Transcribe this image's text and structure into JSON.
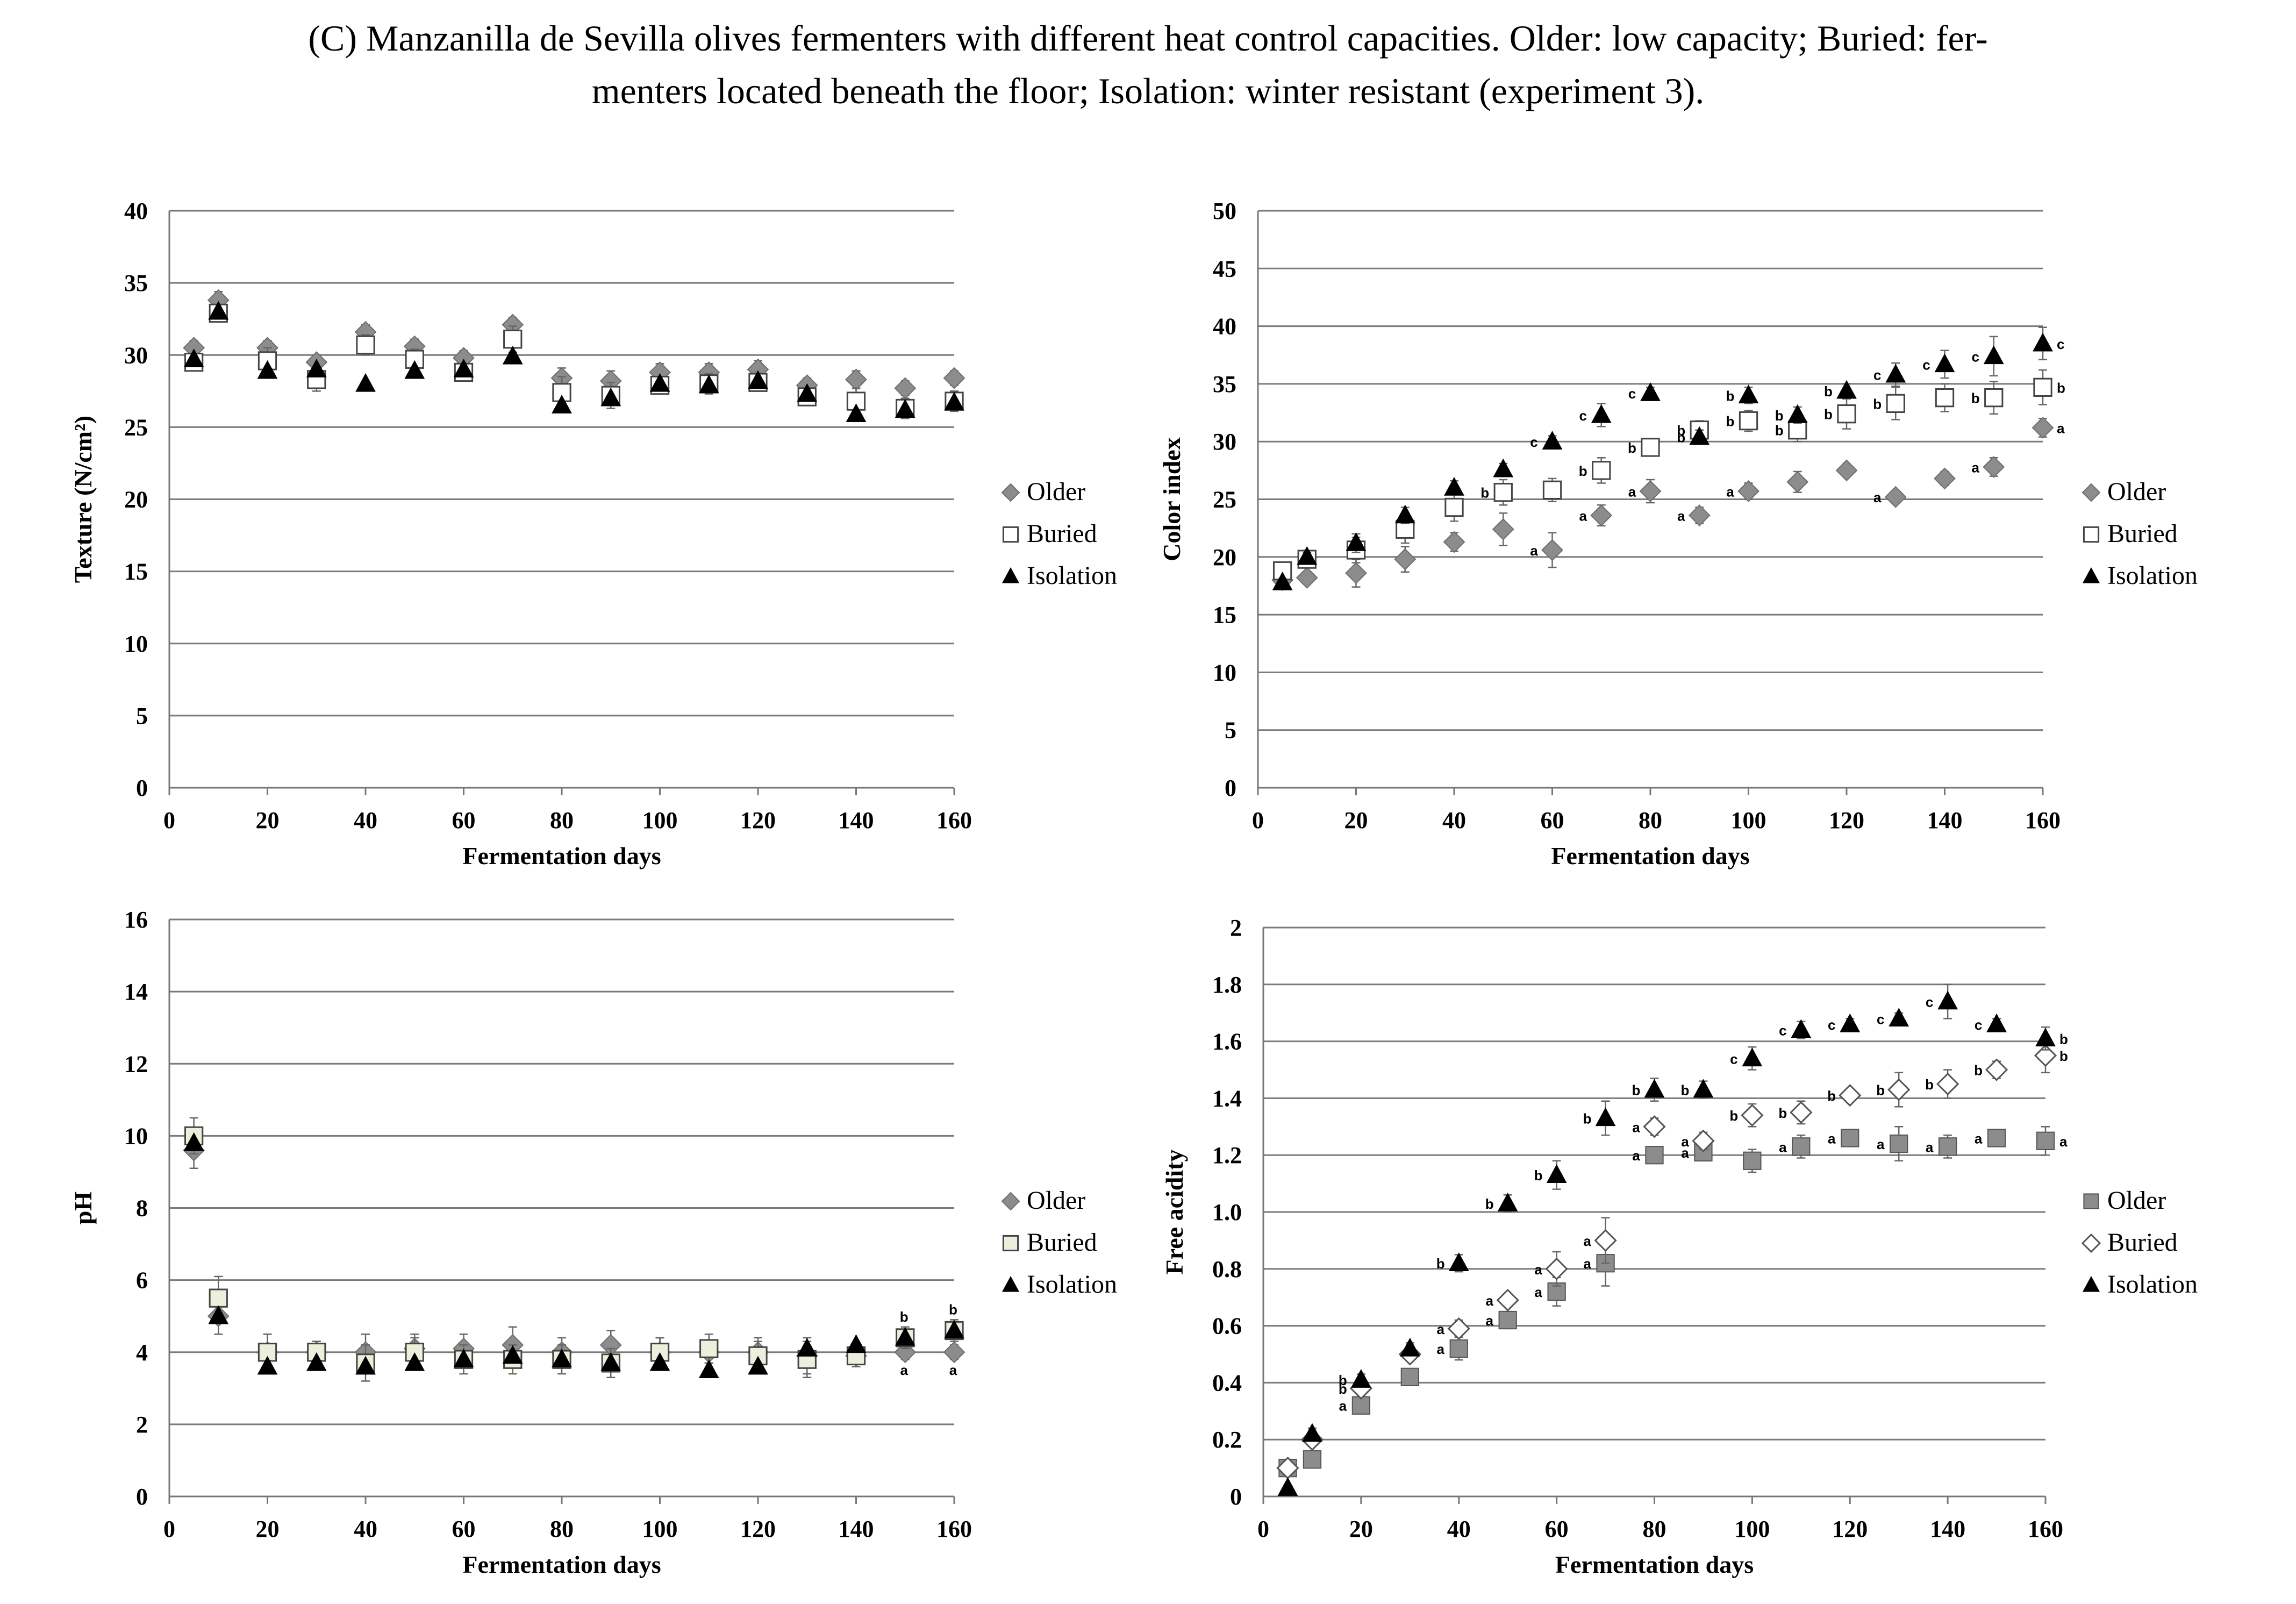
{
  "caption": {
    "line1": "(C) Manzanilla de Sevilla olives fermenters with different heat control capacities. Older: low capacity; Buried: fer-",
    "line2": "menters located beneath the floor; Isolation: winter resistant (experiment 3)."
  },
  "colors": {
    "older": "#8c8c8c",
    "buried": "#ffffff",
    "buried_ph": "#eeeedd",
    "isolation": "#000000",
    "gridline": "#7a7a7a"
  },
  "chart_data": [
    {
      "id": "texture",
      "type": "scatter",
      "title": "",
      "xlabel": "Fermentation days",
      "ylabel": "Texture (N/cm²)",
      "xlim": [
        0,
        160
      ],
      "ylim": [
        0,
        40
      ],
      "xticks": [
        0,
        20,
        40,
        60,
        80,
        100,
        120,
        140,
        160
      ],
      "yticks": [
        0,
        5,
        10,
        15,
        20,
        25,
        30,
        35,
        40
      ],
      "legend_position": "right",
      "series": [
        {
          "name": "Older",
          "marker": "diamond",
          "x": [
            5,
            10,
            20,
            30,
            40,
            50,
            60,
            70,
            80,
            90,
            100,
            110,
            120,
            130,
            140,
            150,
            160
          ],
          "y": [
            30.5,
            33.8,
            30.5,
            29.5,
            31.6,
            30.6,
            29.8,
            32.1,
            28.4,
            28.2,
            28.8,
            28.8,
            29,
            27.9,
            28.3,
            27.7,
            28.4
          ],
          "err": [
            0.5,
            0.6,
            0.5,
            0.5,
            0.5,
            0.5,
            0.5,
            0.5,
            0.7,
            0.7,
            0.6,
            0.6,
            0.6,
            0.5,
            0.6,
            0.5,
            0.5
          ]
        },
        {
          "name": "Buried",
          "marker": "square",
          "x": [
            5,
            10,
            20,
            30,
            40,
            50,
            60,
            70,
            80,
            90,
            100,
            110,
            120,
            130,
            140,
            150,
            160
          ],
          "y": [
            29.5,
            32.9,
            29.6,
            28.3,
            30.7,
            29.7,
            28.8,
            31.1,
            27.4,
            27.2,
            27.9,
            28,
            28.1,
            27.1,
            26.8,
            26.3,
            26.8
          ],
          "err": [
            0.5,
            0.6,
            0.9,
            0.8,
            0.7,
            0.7,
            0.6,
            0.9,
            1.1,
            0.9,
            0.6,
            0.7,
            0.6,
            0.6,
            0.9,
            0.7,
            0.7
          ]
        },
        {
          "name": "Isolation",
          "marker": "triangle",
          "x": [
            5,
            10,
            20,
            30,
            40,
            50,
            60,
            70,
            80,
            90,
            100,
            110,
            120,
            130,
            140,
            150,
            160
          ],
          "y": [
            29.7,
            33,
            28.9,
            29,
            28,
            28.9,
            29,
            29.9,
            26.5,
            27,
            28,
            27.9,
            28.2,
            27.3,
            25.9,
            26.2,
            26.7
          ],
          "err": [
            0,
            0,
            0,
            0,
            0,
            0,
            0,
            0,
            0,
            0,
            0,
            0,
            0,
            0,
            0,
            0,
            0
          ]
        }
      ]
    },
    {
      "id": "color",
      "type": "scatter",
      "title": "",
      "xlabel": "Fermentation days",
      "ylabel": "Color index",
      "xlim": [
        0,
        160
      ],
      "ylim": [
        0,
        50
      ],
      "xticks": [
        0,
        20,
        40,
        60,
        80,
        100,
        120,
        140,
        160
      ],
      "yticks": [
        0,
        5,
        10,
        15,
        20,
        25,
        30,
        35,
        40,
        45,
        50
      ],
      "legend_position": "right",
      "series": [
        {
          "name": "Older",
          "marker": "diamond",
          "x": [
            5,
            10,
            20,
            30,
            40,
            50,
            60,
            70,
            80,
            90,
            100,
            110,
            120,
            130,
            140,
            150,
            160
          ],
          "y": [
            18,
            18.2,
            18.6,
            19.8,
            21.3,
            22.4,
            20.6,
            23.6,
            25.7,
            23.6,
            25.7,
            26.5,
            27.5,
            25.2,
            26.8,
            27.8,
            31.2
          ],
          "err": [
            0.5,
            0.5,
            1.2,
            1.1,
            0.8,
            1.4,
            1.5,
            0.9,
            1,
            0.7,
            0.7,
            0.9,
            0.5,
            0.5,
            0.6,
            0.8,
            0.8
          ],
          "letters": [
            "",
            "",
            "",
            "",
            "",
            "",
            "a",
            "a",
            "a",
            "a",
            "a",
            "",
            "",
            "a",
            "",
            "a",
            "a"
          ]
        },
        {
          "name": "Buried",
          "marker": "square",
          "x": [
            5,
            10,
            20,
            30,
            40,
            50,
            60,
            70,
            80,
            90,
            100,
            110,
            120,
            130,
            140,
            150,
            160
          ],
          "y": [
            18.8,
            19.8,
            20.6,
            22.4,
            24.3,
            25.6,
            25.8,
            27.5,
            29.5,
            31,
            31.8,
            31,
            32.4,
            33.3,
            33.8,
            33.8,
            34.7
          ],
          "err": [
            0.5,
            0.6,
            1.1,
            1.2,
            1.2,
            1.1,
            1,
            1.1,
            0.7,
            0.8,
            0.9,
            1,
            1.3,
            1.4,
            1.2,
            1.4,
            1.5
          ],
          "letters": [
            "",
            "",
            "",
            "",
            "",
            "b",
            "",
            "b",
            "b",
            "b",
            "b",
            "b",
            "b",
            "b",
            "",
            "b",
            "b"
          ]
        },
        {
          "name": "Isolation",
          "marker": "triangle",
          "x": [
            5,
            10,
            20,
            30,
            40,
            50,
            60,
            70,
            80,
            90,
            100,
            110,
            120,
            130,
            140,
            150,
            160
          ],
          "y": [
            17.8,
            20,
            21.2,
            23.6,
            26,
            27.6,
            30,
            32.3,
            34.2,
            30.4,
            34,
            32.3,
            34.4,
            35.8,
            36.7,
            37.4,
            38.5
          ],
          "err": [
            0.3,
            0.4,
            0.8,
            0.7,
            0.6,
            0.5,
            0.5,
            1,
            0.5,
            0.6,
            0.7,
            0.7,
            0.6,
            1,
            1.2,
            1.7,
            1.4
          ],
          "letters": [
            "",
            "",
            "",
            "",
            "",
            "",
            "c",
            "c",
            "c",
            "b",
            "b",
            "b",
            "b",
            "c",
            "c",
            "c",
            "c"
          ]
        }
      ]
    },
    {
      "id": "ph",
      "type": "scatter",
      "title": "",
      "xlabel": "Fermentation days",
      "ylabel": "pH",
      "xlim": [
        0,
        160
      ],
      "ylim": [
        0,
        16
      ],
      "xticks": [
        0,
        20,
        40,
        60,
        80,
        100,
        120,
        140,
        160
      ],
      "yticks": [
        0,
        2,
        4,
        6,
        8,
        10,
        12,
        14,
        16
      ],
      "legend_position": "right",
      "series": [
        {
          "name": "Older",
          "marker": "diamond",
          "x": [
            5,
            10,
            20,
            30,
            40,
            50,
            60,
            70,
            80,
            90,
            100,
            110,
            120,
            130,
            140,
            150,
            160
          ],
          "y": [
            9.6,
            5,
            4,
            4,
            4,
            4.1,
            4.1,
            4.2,
            4,
            4.2,
            4,
            4,
            4,
            3.9,
            3.9,
            4,
            4
          ],
          "err": [
            0.5,
            0.5,
            0.5,
            0.3,
            0.5,
            0.4,
            0.4,
            0.5,
            0.4,
            0.4,
            0.4,
            0.3,
            0.4,
            0.5,
            0.3,
            0.2,
            0.2
          ],
          "letters": [
            "",
            "",
            "",
            "",
            "",
            "",
            "",
            "",
            "",
            "",
            "",
            "",
            "",
            "",
            "",
            "a",
            "a"
          ]
        },
        {
          "name": "Buried",
          "marker": "square",
          "x": [
            5,
            10,
            20,
            30,
            40,
            50,
            60,
            70,
            80,
            90,
            100,
            110,
            120,
            130,
            140,
            150,
            160
          ],
          "y": [
            10,
            5.5,
            4,
            4,
            3.7,
            4,
            3.8,
            3.8,
            3.8,
            3.7,
            4,
            4.1,
            3.9,
            3.8,
            3.9,
            4.4,
            4.6
          ],
          "err": [
            0.5,
            0.6,
            0.5,
            0.3,
            0.5,
            0.4,
            0.4,
            0.4,
            0.4,
            0.4,
            0.4,
            0.4,
            0.4,
            0.5,
            0.3,
            0.3,
            0.3
          ],
          "letters": [
            "",
            "",
            "",
            "",
            "",
            "",
            "",
            "",
            "",
            "",
            "",
            "",
            "",
            "",
            "",
            "",
            ""
          ]
        },
        {
          "name": "Isolation",
          "marker": "triangle",
          "x": [
            5,
            10,
            20,
            30,
            40,
            50,
            60,
            70,
            80,
            90,
            100,
            110,
            120,
            130,
            140,
            150,
            160
          ],
          "y": [
            9.8,
            5,
            3.6,
            3.7,
            3.6,
            3.7,
            3.8,
            3.9,
            3.8,
            3.7,
            3.7,
            3.5,
            3.6,
            4.1,
            4.2,
            4.4,
            4.6
          ],
          "err": [
            0,
            0,
            0,
            0,
            0,
            0,
            0,
            0,
            0,
            0,
            0,
            0,
            0,
            0,
            0,
            0,
            0
          ],
          "letters": [
            "",
            "",
            "",
            "",
            "",
            "",
            "",
            "",
            "",
            "",
            "",
            "",
            "",
            "",
            "",
            "b",
            "b"
          ]
        }
      ]
    },
    {
      "id": "acidity",
      "type": "scatter",
      "title": "",
      "xlabel": "Fermentation days",
      "ylabel": "Free acidity",
      "xlim": [
        0,
        160
      ],
      "ylim": [
        0,
        2
      ],
      "xticks": [
        0,
        20,
        40,
        60,
        80,
        100,
        120,
        140,
        160
      ],
      "yticks": [
        "0",
        "0.2",
        "0.4",
        "0.6",
        "0.8",
        "1.0",
        "1.2",
        "1.4",
        "1.6",
        "1.8",
        "2"
      ],
      "legend_position": "right",
      "series": [
        {
          "name": "Older",
          "marker": "square-filled",
          "x": [
            5,
            10,
            20,
            30,
            40,
            50,
            60,
            70,
            80,
            90,
            100,
            110,
            120,
            130,
            140,
            150,
            160
          ],
          "y": [
            0.1,
            0.13,
            0.32,
            0.42,
            0.52,
            0.62,
            0.72,
            0.82,
            1.2,
            1.21,
            1.18,
            1.23,
            1.26,
            1.24,
            1.23,
            1.26,
            1.25
          ],
          "err": [
            0.01,
            0.01,
            0.02,
            0.02,
            0.04,
            0.03,
            0.05,
            0.08,
            0.02,
            0.02,
            0.04,
            0.04,
            0.02,
            0.06,
            0.04,
            0.02,
            0.05
          ],
          "letters": [
            "",
            "",
            "a",
            "",
            "a",
            "a",
            "a",
            "a",
            "a",
            "a",
            "",
            "a",
            "a",
            "a",
            "a",
            "a",
            "a"
          ]
        },
        {
          "name": "Buried",
          "marker": "diamond-open",
          "x": [
            5,
            10,
            20,
            30,
            40,
            50,
            60,
            70,
            80,
            90,
            100,
            110,
            120,
            130,
            140,
            150,
            160
          ],
          "y": [
            0.1,
            0.2,
            0.38,
            0.5,
            0.59,
            0.69,
            0.8,
            0.9,
            1.3,
            1.25,
            1.34,
            1.35,
            1.41,
            1.43,
            1.45,
            1.5,
            1.55
          ],
          "err": [
            0.01,
            0.02,
            0.02,
            0.02,
            0.03,
            0.02,
            0.06,
            0.08,
            0.03,
            0.03,
            0.04,
            0.04,
            0.02,
            0.06,
            0.05,
            0.03,
            0.06
          ],
          "letters": [
            "",
            "",
            "b",
            "",
            "a",
            "a",
            "a",
            "a",
            "a",
            "a",
            "b",
            "b",
            "b",
            "b",
            "b",
            "b",
            "b"
          ]
        },
        {
          "name": "Isolation",
          "marker": "triangle",
          "x": [
            5,
            10,
            20,
            30,
            40,
            50,
            60,
            70,
            80,
            90,
            100,
            110,
            120,
            130,
            140,
            150,
            160
          ],
          "y": [
            0.03,
            0.22,
            0.41,
            0.52,
            0.82,
            1.03,
            1.13,
            1.33,
            1.43,
            1.43,
            1.54,
            1.64,
            1.66,
            1.68,
            1.74,
            1.66,
            1.61
          ],
          "err": [
            0.01,
            0.02,
            0.02,
            0.02,
            0.03,
            0.03,
            0.05,
            0.06,
            0.04,
            0.03,
            0.04,
            0.03,
            0.02,
            0.02,
            0.06,
            0.02,
            0.04
          ],
          "letters": [
            "",
            "",
            "b",
            "",
            "b",
            "b",
            "b",
            "b",
            "b",
            "b",
            "c",
            "c",
            "c",
            "c",
            "c",
            "c",
            "b"
          ]
        }
      ]
    }
  ]
}
